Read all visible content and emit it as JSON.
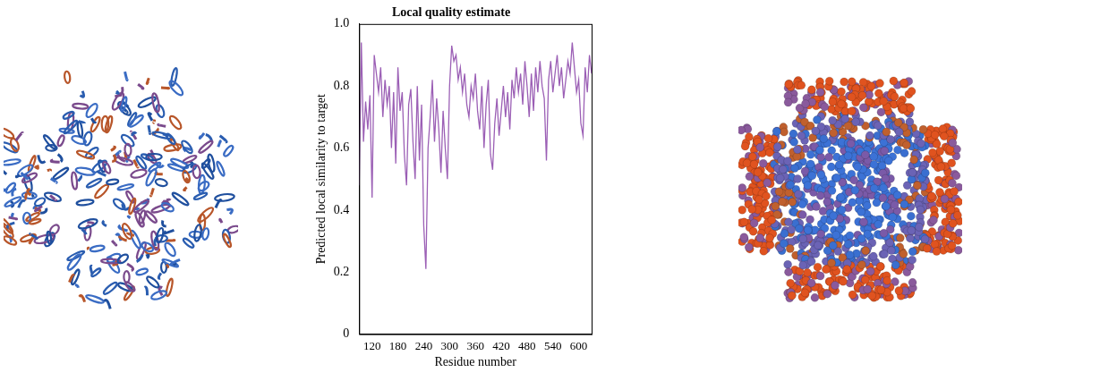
{
  "chart_data": {
    "type": "line",
    "title": "Local quality estimate",
    "x_label": "Residue number",
    "y_label": "Predicted local similarity to target",
    "x": [
      90,
      95,
      100,
      105,
      110,
      115,
      120,
      125,
      130,
      135,
      140,
      145,
      150,
      155,
      160,
      165,
      170,
      175,
      180,
      185,
      190,
      195,
      200,
      205,
      210,
      215,
      220,
      225,
      230,
      235,
      240,
      245,
      250,
      255,
      260,
      265,
      270,
      275,
      280,
      285,
      290,
      295,
      300,
      305,
      310,
      315,
      320,
      325,
      330,
      335,
      340,
      345,
      350,
      355,
      360,
      365,
      370,
      375,
      380,
      385,
      390,
      395,
      400,
      405,
      410,
      415,
      420,
      425,
      430,
      435,
      440,
      445,
      450,
      455,
      460,
      465,
      470,
      475,
      480,
      485,
      490,
      495,
      500,
      505,
      510,
      515,
      520,
      525,
      530,
      535,
      540,
      545,
      550,
      555,
      560,
      565,
      570,
      575,
      580,
      585,
      590,
      595,
      600,
      605,
      610,
      615,
      620,
      625,
      630
    ],
    "values": [
      0.48,
      0.94,
      0.62,
      0.75,
      0.66,
      0.77,
      0.44,
      0.9,
      0.84,
      0.78,
      0.86,
      0.7,
      0.82,
      0.74,
      0.8,
      0.6,
      0.78,
      0.55,
      0.86,
      0.72,
      0.78,
      0.58,
      0.48,
      0.74,
      0.79,
      0.62,
      0.5,
      0.8,
      0.56,
      0.74,
      0.35,
      0.21,
      0.6,
      0.7,
      0.82,
      0.62,
      0.76,
      0.66,
      0.52,
      0.72,
      0.6,
      0.5,
      0.8,
      0.93,
      0.88,
      0.9,
      0.82,
      0.86,
      0.78,
      0.84,
      0.74,
      0.7,
      0.8,
      0.76,
      0.84,
      0.72,
      0.66,
      0.8,
      0.6,
      0.74,
      0.82,
      0.58,
      0.53,
      0.68,
      0.76,
      0.64,
      0.72,
      0.8,
      0.7,
      0.78,
      0.66,
      0.82,
      0.76,
      0.86,
      0.78,
      0.84,
      0.74,
      0.88,
      0.8,
      0.7,
      0.84,
      0.72,
      0.86,
      0.78,
      0.88,
      0.8,
      0.76,
      0.56,
      0.82,
      0.88,
      0.78,
      0.84,
      0.9,
      0.8,
      0.86,
      0.76,
      0.82,
      0.88,
      0.84,
      0.94,
      0.86,
      0.78,
      0.82,
      0.68,
      0.64,
      0.86,
      0.78,
      0.9,
      0.84
    ],
    "color": "#9b5fb5",
    "xlim": [
      90,
      630
    ],
    "xticks": [
      120,
      180,
      240,
      300,
      360,
      420,
      480,
      540,
      600
    ],
    "ylim": [
      0,
      1
    ],
    "yticks": [
      0,
      0.2,
      0.4,
      0.6,
      0.8,
      {
        "value": 1,
        "label": "1.0"
      }
    ],
    "grid": false
  }
}
